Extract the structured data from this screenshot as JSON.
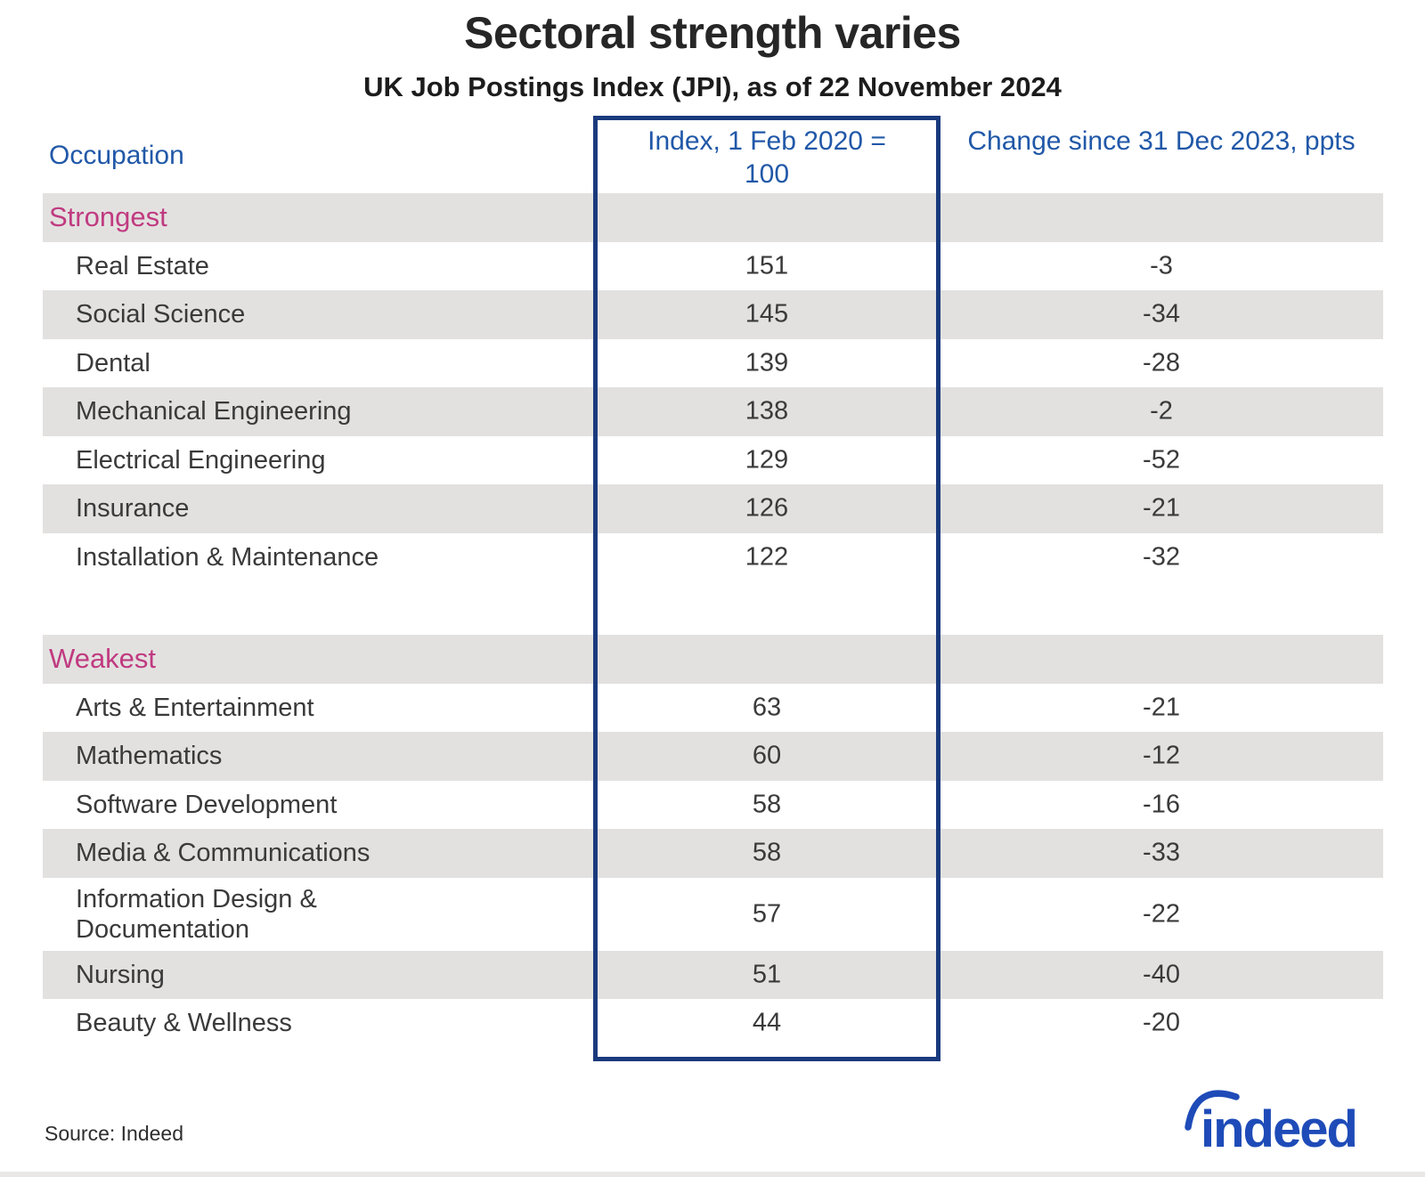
{
  "header": {
    "title": "Sectoral strength varies",
    "subtitle": "UK Job Postings Index (JPI), as of 22 November 2024"
  },
  "table": {
    "columns": {
      "occupation": "Occupation",
      "index": "Index, 1 Feb 2020 = 100",
      "change": "Change since 31 Dec 2023, ppts"
    },
    "sections": [
      {
        "label": "Strongest",
        "rows": [
          {
            "occupation": "Real Estate",
            "index": "151",
            "change": "-3"
          },
          {
            "occupation": "Social Science",
            "index": "145",
            "change": "-34"
          },
          {
            "occupation": "Dental",
            "index": "139",
            "change": "-28"
          },
          {
            "occupation": "Mechanical Engineering",
            "index": "138",
            "change": "-2"
          },
          {
            "occupation": "Electrical Engineering",
            "index": "129",
            "change": "-52"
          },
          {
            "occupation": "Insurance",
            "index": "126",
            "change": "-21"
          },
          {
            "occupation": "Installation & Maintenance",
            "index": "122",
            "change": "-32"
          }
        ]
      },
      {
        "label": "Weakest",
        "rows": [
          {
            "occupation": "Arts & Entertainment",
            "index": "63",
            "change": "-21"
          },
          {
            "occupation": "Mathematics",
            "index": "60",
            "change": "-12"
          },
          {
            "occupation": "Software Development",
            "index": "58",
            "change": "-16"
          },
          {
            "occupation": "Media & Communications",
            "index": "58",
            "change": "-33"
          },
          {
            "occupation": "Information Design & Documentation",
            "index": "57",
            "change": "-22"
          },
          {
            "occupation": "Nursing",
            "index": "51",
            "change": "-40"
          },
          {
            "occupation": "Beauty & Wellness",
            "index": "44",
            "change": "-20"
          }
        ]
      }
    ]
  },
  "footer": {
    "source": "Source: Indeed",
    "logo_text": "indeed"
  },
  "colors": {
    "title-dark": "#262626",
    "header-blue": "#2158a8",
    "section-pink": "#c03a80",
    "box-navy": "#1a3a7d",
    "row-gray": "#e3e1e0",
    "text-dark": "#3a3a3a",
    "logo-blue": "#1e4bb8",
    "bottom-strip": "#eae8e7"
  },
  "chart_data": {
    "type": "table",
    "title": "Sectoral strength varies",
    "subtitle": "UK Job Postings Index (JPI), as of 22 November 2024",
    "columns": [
      "Occupation",
      "Index, 1 Feb 2020 = 100",
      "Change since 31 Dec 2023, ppts"
    ],
    "sections": [
      {
        "name": "Strongest",
        "rows": [
          [
            "Real Estate",
            151,
            -3
          ],
          [
            "Social Science",
            145,
            -34
          ],
          [
            "Dental",
            139,
            -28
          ],
          [
            "Mechanical Engineering",
            138,
            -2
          ],
          [
            "Electrical Engineering",
            129,
            -52
          ],
          [
            "Insurance",
            126,
            -21
          ],
          [
            "Installation & Maintenance",
            122,
            -32
          ]
        ]
      },
      {
        "name": "Weakest",
        "rows": [
          [
            "Arts & Entertainment",
            63,
            -21
          ],
          [
            "Mathematics",
            60,
            -12
          ],
          [
            "Software Development",
            58,
            -16
          ],
          [
            "Media & Communications",
            58,
            -33
          ],
          [
            "Information Design & Documentation",
            57,
            -22
          ],
          [
            "Nursing",
            51,
            -40
          ],
          [
            "Beauty & Wellness",
            44,
            -20
          ]
        ]
      }
    ],
    "layout_hints": {
      "highlighted_column": "Index, 1 Feb 2020 = 100",
      "row_striping": true,
      "index_base": 100
    },
    "source": "Source: Indeed"
  }
}
